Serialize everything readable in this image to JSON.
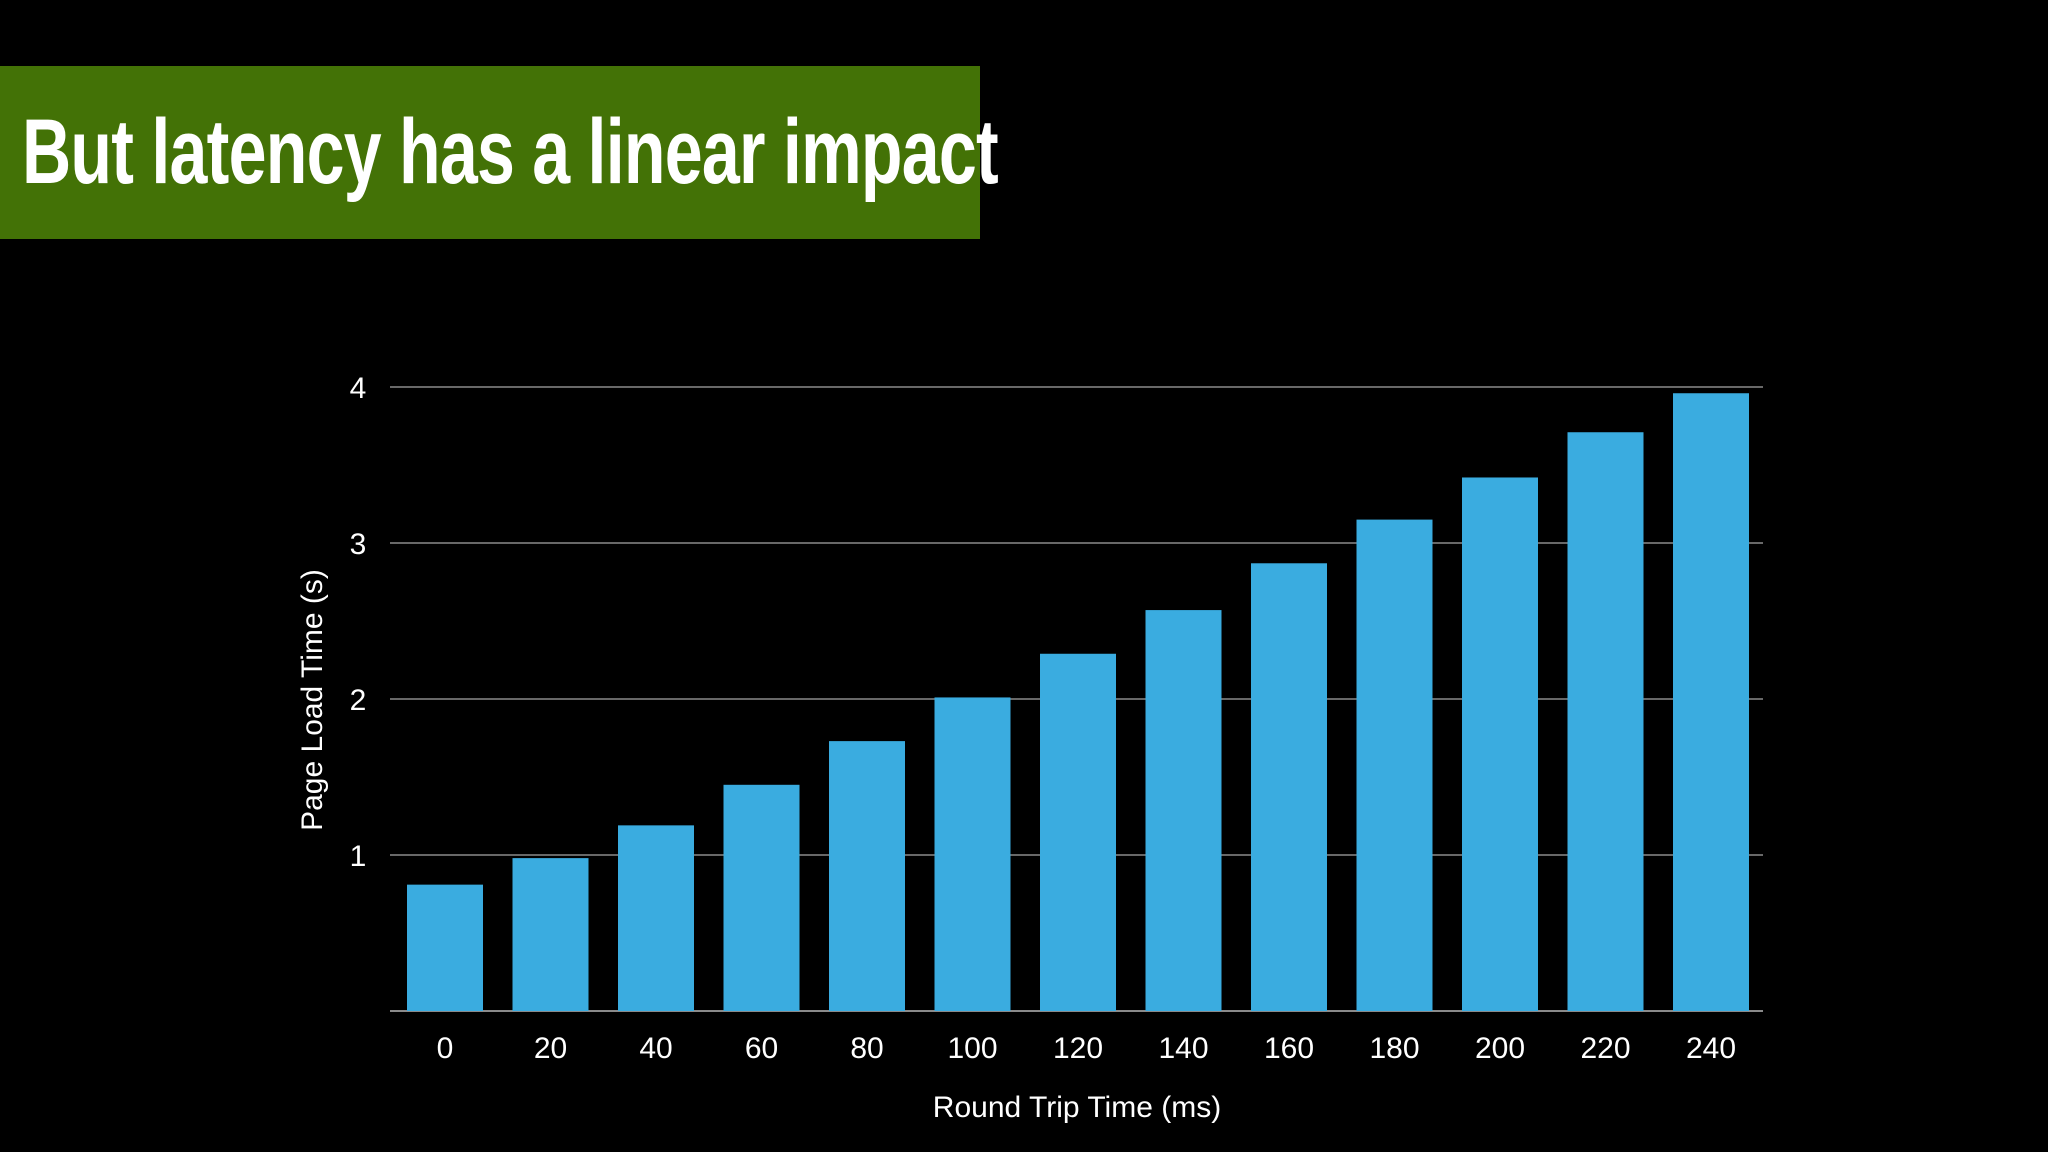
{
  "slide": {
    "title": "But latency has a linear impact",
    "title_band_color": "#437206",
    "background_color": "#000000"
  },
  "chart_data": {
    "type": "bar",
    "categories": [
      "0",
      "20",
      "40",
      "60",
      "80",
      "100",
      "120",
      "140",
      "160",
      "180",
      "200",
      "220",
      "240"
    ],
    "values": [
      0.81,
      0.98,
      1.19,
      1.45,
      1.73,
      2.01,
      2.29,
      2.57,
      2.87,
      3.15,
      3.42,
      3.71,
      3.96
    ],
    "xlabel": "Round Trip Time (ms)",
    "ylabel": "Page Load Time (s)",
    "ylim": [
      0,
      4
    ],
    "yticks": [
      "",
      "1",
      "2",
      "3",
      "4"
    ],
    "grid": true,
    "bar_color": "#3aace0",
    "grid_color": "#8a8a8a"
  }
}
